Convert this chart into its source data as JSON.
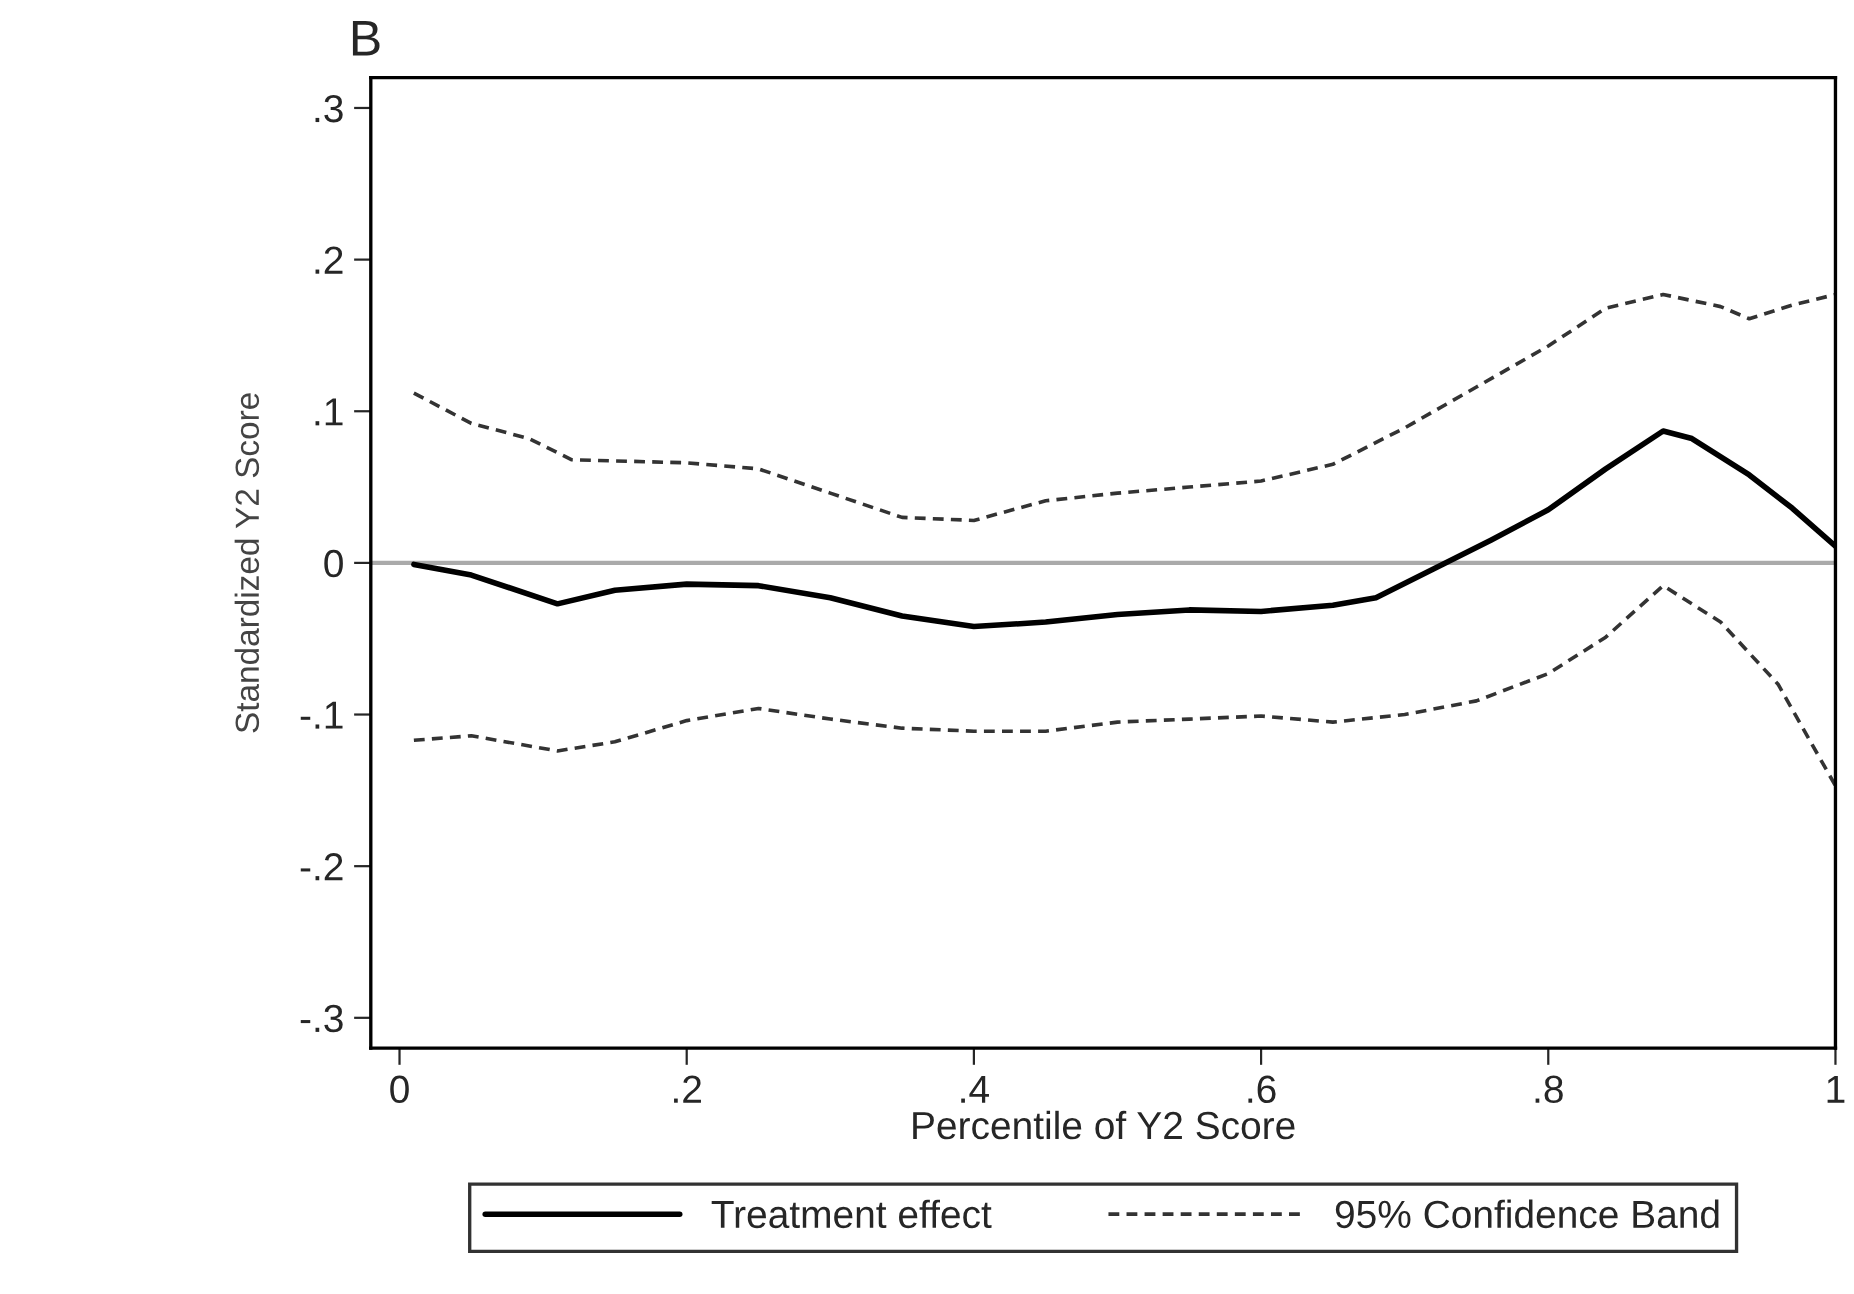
{
  "chart_data": {
    "type": "line",
    "title": "B",
    "xlabel": "Percentile of Y2 Score",
    "ylabel": "Standardized Y2 Score",
    "xlim": [
      -0.02,
      1.0
    ],
    "ylim": [
      -0.32,
      0.32
    ],
    "xticks": [
      {
        "value": 0,
        "label": "0"
      },
      {
        "value": 0.2,
        "label": ".2"
      },
      {
        "value": 0.4,
        "label": ".4"
      },
      {
        "value": 0.6,
        "label": ".6"
      },
      {
        "value": 0.8,
        "label": ".8"
      },
      {
        "value": 1,
        "label": "1"
      }
    ],
    "yticks": [
      {
        "value": -0.3,
        "label": "-.3"
      },
      {
        "value": -0.2,
        "label": "-.2"
      },
      {
        "value": -0.1,
        "label": "-.1"
      },
      {
        "value": 0,
        "label": "0"
      },
      {
        "value": 0.1,
        "label": ".1"
      },
      {
        "value": 0.2,
        "label": ".2"
      },
      {
        "value": 0.3,
        "label": ".3"
      }
    ],
    "grid": false,
    "legend": "bottom",
    "marker": "none",
    "ref_lines": [
      {
        "axis": "y",
        "value": 0,
        "color": "#aaaaaa",
        "line_style": "solid"
      }
    ],
    "series": [
      {
        "name": "Treatment effect",
        "color": "#000000",
        "line_style": "solid",
        "x": [
          0.01,
          0.05,
          0.11,
          0.15,
          0.2,
          0.25,
          0.3,
          0.35,
          0.4,
          0.45,
          0.5,
          0.55,
          0.6,
          0.65,
          0.68,
          0.72,
          0.76,
          0.8,
          0.84,
          0.88,
          0.9,
          0.94,
          0.97,
          1.0
        ],
        "values": [
          -0.001,
          -0.008,
          -0.027,
          -0.018,
          -0.014,
          -0.015,
          -0.023,
          -0.035,
          -0.042,
          -0.039,
          -0.034,
          -0.031,
          -0.032,
          -0.028,
          -0.023,
          -0.004,
          0.015,
          0.035,
          0.062,
          0.087,
          0.082,
          0.058,
          0.036,
          0.011
        ]
      },
      {
        "name": "95% Confidence Band",
        "color": "#333333",
        "line_style": "dashed",
        "x": [
          0.01,
          0.05,
          0.09,
          0.12,
          0.2,
          0.25,
          0.3,
          0.35,
          0.4,
          0.45,
          0.5,
          0.55,
          0.6,
          0.65,
          0.7,
          0.75,
          0.8,
          0.84,
          0.88,
          0.92,
          0.94,
          0.97,
          1.0
        ],
        "values": [
          0.112,
          0.092,
          0.082,
          0.068,
          0.066,
          0.062,
          0.046,
          0.03,
          0.028,
          0.041,
          0.046,
          0.05,
          0.054,
          0.065,
          0.089,
          0.116,
          0.143,
          0.168,
          0.177,
          0.169,
          0.161,
          0.17,
          0.177
        ]
      },
      {
        "color": "#333333",
        "line_style": "dashed",
        "x": [
          0.01,
          0.05,
          0.11,
          0.15,
          0.2,
          0.25,
          0.3,
          0.35,
          0.4,
          0.45,
          0.5,
          0.55,
          0.6,
          0.65,
          0.7,
          0.75,
          0.8,
          0.84,
          0.88,
          0.92,
          0.96,
          1.0
        ],
        "values": [
          -0.117,
          -0.114,
          -0.124,
          -0.118,
          -0.104,
          -0.096,
          -0.103,
          -0.109,
          -0.111,
          -0.111,
          -0.105,
          -0.103,
          -0.101,
          -0.105,
          -0.1,
          -0.091,
          -0.073,
          -0.049,
          -0.015,
          -0.039,
          -0.08,
          -0.147
        ]
      }
    ]
  }
}
